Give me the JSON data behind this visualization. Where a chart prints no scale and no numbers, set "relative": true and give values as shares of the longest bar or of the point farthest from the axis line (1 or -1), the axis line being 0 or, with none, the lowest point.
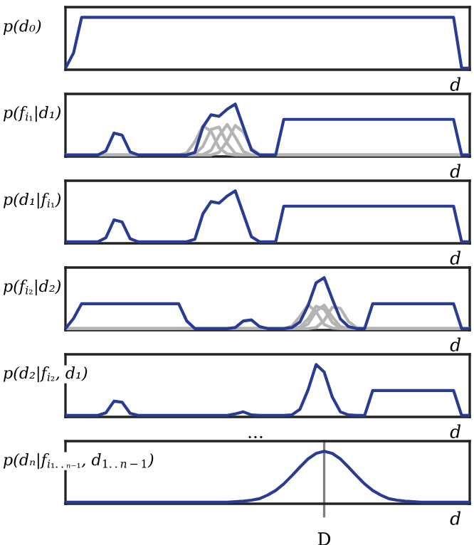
{
  "chart_data": [
    {
      "type": "line",
      "relative": true,
      "ylabel": "p(d₀)",
      "xlabel": "d",
      "categories": [
        null,
        null,
        null,
        null,
        null,
        null,
        null,
        null,
        null,
        null,
        null,
        null,
        null,
        null,
        null,
        null,
        null,
        null,
        null,
        null,
        null,
        null,
        null,
        null,
        null,
        null,
        null,
        null,
        null,
        null,
        null,
        null,
        null,
        null,
        null,
        null,
        null,
        null,
        null,
        null,
        null,
        null,
        null,
        null,
        null,
        null,
        null,
        null,
        null,
        null,
        null
      ],
      "series": [
        {
          "color": "#283c96",
          "values": [
            0,
            0.3,
            1,
            1,
            1,
            1,
            1,
            1,
            1,
            1,
            1,
            1,
            1,
            1,
            1,
            1,
            1,
            1,
            1,
            1,
            1,
            1,
            1,
            1,
            1,
            1,
            1,
            1,
            1,
            1,
            1,
            1,
            1,
            1,
            1,
            1,
            1,
            1,
            1,
            1,
            1,
            1,
            1,
            1,
            1,
            1,
            1,
            1,
            1,
            0,
            0
          ]
        }
      ]
    },
    {
      "type": "line",
      "relative": true,
      "ylabel": "p(f$_{i₁}$|d₁)",
      "xlabel": "d",
      "categories": [
        null,
        null,
        null,
        null,
        null,
        null,
        null,
        null,
        null,
        null,
        null,
        null,
        null,
        null,
        null,
        null,
        null,
        null,
        null,
        null,
        null,
        null,
        null,
        null,
        null,
        null,
        null,
        null,
        null,
        null,
        null,
        null,
        null,
        null,
        null,
        null,
        null,
        null,
        null,
        null,
        null,
        null,
        null,
        null,
        null,
        null,
        null,
        null,
        null,
        null,
        null
      ],
      "series": [
        {
          "color": "#b4b4b4",
          "values": [
            0,
            0,
            0,
            0,
            0,
            0,
            0,
            0,
            0,
            0,
            0,
            0,
            0,
            0,
            0,
            0.04,
            0.26,
            0.57,
            0.47,
            0.14,
            0.02,
            0,
            0,
            0,
            0,
            0,
            0,
            0,
            0,
            0,
            0,
            0,
            0,
            0,
            0,
            0,
            0,
            0,
            0,
            0,
            0,
            0,
            0,
            0,
            0,
            0,
            0,
            0,
            0,
            0,
            0
          ]
        },
        {
          "color": "#b4b4b4",
          "values": [
            0,
            0,
            0,
            0,
            0,
            0,
            0,
            0,
            0,
            0,
            0,
            0,
            0,
            0,
            0,
            0,
            0.02,
            0.17,
            0.5,
            0.55,
            0.23,
            0.03,
            0,
            0,
            0,
            0,
            0,
            0,
            0,
            0,
            0,
            0,
            0,
            0,
            0,
            0,
            0,
            0,
            0,
            0,
            0,
            0,
            0,
            0,
            0,
            0,
            0,
            0,
            0,
            0,
            0
          ]
        },
        {
          "color": "#b4b4b4",
          "values": [
            0,
            0,
            0,
            0,
            0,
            0,
            0,
            0,
            0,
            0,
            0,
            0,
            0,
            0,
            0,
            0,
            0,
            0.01,
            0.09,
            0.38,
            0.6,
            0.35,
            0.07,
            0,
            0,
            0,
            0,
            0,
            0,
            0,
            0,
            0,
            0,
            0,
            0,
            0,
            0,
            0,
            0,
            0,
            0,
            0,
            0,
            0,
            0,
            0,
            0,
            0,
            0,
            0,
            0
          ]
        },
        {
          "color": "#b4b4b4",
          "values": [
            0,
            0,
            0,
            0,
            0,
            0,
            0,
            0,
            0,
            0,
            0,
            0,
            0,
            0,
            0,
            0,
            0,
            0,
            0,
            0.05,
            0.27,
            0.58,
            0.45,
            0.13,
            0.01,
            0,
            0,
            0,
            0,
            0,
            0,
            0,
            0,
            0,
            0,
            0,
            0,
            0,
            0,
            0,
            0,
            0,
            0,
            0,
            0,
            0,
            0,
            0,
            0,
            0,
            0
          ]
        },
        {
          "color": "#283c96",
          "values": [
            0,
            0,
            0,
            0,
            0,
            0.08,
            0.43,
            0.39,
            0.06,
            0,
            0,
            0,
            0,
            0,
            0,
            0,
            0.05,
            0.55,
            0.79,
            0.76,
            0.9,
            1,
            0.55,
            0.1,
            0,
            0,
            0,
            0.7,
            0.7,
            0.7,
            0.7,
            0.7,
            0.7,
            0.7,
            0.7,
            0.7,
            0.7,
            0.7,
            0.7,
            0.7,
            0.7,
            0.7,
            0.7,
            0.7,
            0.7,
            0.7,
            0.7,
            0.7,
            0.7,
            0,
            0
          ]
        }
      ]
    },
    {
      "type": "line",
      "relative": true,
      "ylabel": "p(d₁|f$_{i₁}$)",
      "xlabel": "d",
      "categories": [
        null,
        null,
        null,
        null,
        null,
        null,
        null,
        null,
        null,
        null,
        null,
        null,
        null,
        null,
        null,
        null,
        null,
        null,
        null,
        null,
        null,
        null,
        null,
        null,
        null,
        null,
        null,
        null,
        null,
        null,
        null,
        null,
        null,
        null,
        null,
        null,
        null,
        null,
        null,
        null,
        null,
        null,
        null,
        null,
        null,
        null,
        null,
        null,
        null,
        null,
        null
      ],
      "series": [
        {
          "color": "#283c96",
          "values": [
            0,
            0,
            0,
            0,
            0,
            0.08,
            0.43,
            0.39,
            0.06,
            0,
            0,
            0,
            0,
            0,
            0,
            0,
            0.05,
            0.55,
            0.79,
            0.76,
            0.9,
            1,
            0.55,
            0.1,
            0,
            0,
            0,
            0.7,
            0.7,
            0.7,
            0.7,
            0.7,
            0.7,
            0.7,
            0.7,
            0.7,
            0.7,
            0.7,
            0.7,
            0.7,
            0.7,
            0.7,
            0.7,
            0.7,
            0.7,
            0.7,
            0.7,
            0.7,
            0.7,
            0,
            0
          ]
        }
      ]
    },
    {
      "type": "line",
      "relative": true,
      "ylabel": "p(f$_{i₂}$|d₂)",
      "xlabel": "d",
      "categories": [
        null,
        null,
        null,
        null,
        null,
        null,
        null,
        null,
        null,
        null,
        null,
        null,
        null,
        null,
        null,
        null,
        null,
        null,
        null,
        null,
        null,
        null,
        null,
        null,
        null,
        null,
        null,
        null,
        null,
        null,
        null,
        null,
        null,
        null,
        null,
        null,
        null,
        null,
        null,
        null,
        null,
        null,
        null,
        null,
        null,
        null,
        null,
        null,
        null,
        null,
        null
      ],
      "series": [
        {
          "color": "#b4b4b4",
          "values": [
            0,
            0,
            0,
            0,
            0,
            0,
            0,
            0,
            0,
            0,
            0,
            0,
            0,
            0,
            0,
            0,
            0,
            0,
            0,
            0,
            0,
            0,
            0,
            0,
            0,
            0,
            0,
            0,
            0.05,
            0.24,
            0.47,
            0.33,
            0.08,
            0.01,
            0,
            0,
            0,
            0,
            0,
            0,
            0,
            0,
            0,
            0,
            0,
            0,
            0,
            0,
            0,
            0,
            0
          ]
        },
        {
          "color": "#b4b4b4",
          "values": [
            0,
            0,
            0,
            0,
            0,
            0,
            0,
            0,
            0,
            0,
            0,
            0,
            0,
            0,
            0,
            0,
            0,
            0,
            0,
            0,
            0,
            0,
            0,
            0,
            0,
            0,
            0,
            0,
            0,
            0.03,
            0.19,
            0.44,
            0.38,
            0.12,
            0.01,
            0,
            0,
            0,
            0,
            0,
            0,
            0,
            0,
            0,
            0,
            0,
            0,
            0,
            0,
            0,
            0
          ]
        },
        {
          "color": "#b4b4b4",
          "values": [
            0,
            0,
            0,
            0,
            0,
            0,
            0,
            0,
            0,
            0,
            0,
            0,
            0,
            0,
            0,
            0,
            0,
            0,
            0,
            0,
            0,
            0,
            0,
            0,
            0,
            0,
            0,
            0,
            0,
            0.01,
            0.09,
            0.34,
            0.46,
            0.23,
            0.04,
            0,
            0,
            0,
            0,
            0,
            0,
            0,
            0,
            0,
            0,
            0,
            0,
            0,
            0,
            0,
            0
          ]
        },
        {
          "color": "#b4b4b4",
          "values": [
            0,
            0,
            0,
            0,
            0,
            0,
            0,
            0,
            0,
            0,
            0,
            0,
            0,
            0,
            0,
            0,
            0,
            0,
            0,
            0,
            0,
            0,
            0,
            0,
            0,
            0,
            0,
            0,
            0,
            0,
            0,
            0.02,
            0.16,
            0.42,
            0.4,
            0.14,
            0.02,
            0,
            0,
            0,
            0,
            0,
            0,
            0,
            0,
            0,
            0,
            0,
            0,
            0,
            0
          ]
        },
        {
          "color": "#283c96",
          "values": [
            0,
            0.2,
            0.49,
            0.49,
            0.49,
            0.49,
            0.49,
            0.49,
            0.49,
            0.49,
            0.49,
            0.49,
            0.49,
            0.49,
            0.49,
            0.15,
            0,
            0,
            0,
            0,
            0,
            0.02,
            0.15,
            0.17,
            0.04,
            0,
            0,
            0,
            0.02,
            0.13,
            0.45,
            0.9,
            1,
            0.58,
            0.19,
            0.04,
            0,
            0,
            0.49,
            0.49,
            0.49,
            0.49,
            0.49,
            0.49,
            0.49,
            0.49,
            0.49,
            0.49,
            0.49,
            0,
            0
          ]
        }
      ]
    },
    {
      "type": "line",
      "relative": true,
      "ylabel": "p(d₂|f$_{i₂}$, d₁)",
      "xlabel": "d",
      "annotations": [
        "..."
      ],
      "categories": [
        null,
        null,
        null,
        null,
        null,
        null,
        null,
        null,
        null,
        null,
        null,
        null,
        null,
        null,
        null,
        null,
        null,
        null,
        null,
        null,
        null,
        null,
        null,
        null,
        null,
        null,
        null,
        null,
        null,
        null,
        null,
        null,
        null,
        null,
        null,
        null,
        null,
        null,
        null,
        null,
        null,
        null,
        null,
        null,
        null,
        null,
        null,
        null,
        null,
        null,
        null
      ],
      "series": [
        {
          "color": "#283c96",
          "values": [
            0,
            0,
            0,
            0,
            0,
            0.05,
            0.28,
            0.26,
            0.04,
            0,
            0,
            0,
            0,
            0,
            0,
            0,
            0,
            0,
            0,
            0,
            0,
            0.03,
            0.07,
            0.01,
            0,
            0,
            0,
            0,
            0.01,
            0.12,
            0.5,
            1,
            0.85,
            0.36,
            0.07,
            0.01,
            0,
            0,
            0.49,
            0.49,
            0.49,
            0.49,
            0.49,
            0.49,
            0.49,
            0.49,
            0.49,
            0.49,
            0.49,
            0,
            0
          ]
        }
      ]
    },
    {
      "type": "line",
      "relative": true,
      "ylabel": "p(dₙ|f$_{i₁..ₙ₋₁}$, d$_{1..n−1}$)",
      "xlabel": "d",
      "categories": [
        null,
        null,
        null,
        null,
        null,
        null,
        null,
        null,
        null,
        null,
        null,
        null,
        null,
        null,
        null,
        null,
        null,
        null,
        null,
        null,
        null,
        null,
        null,
        null,
        null,
        null,
        null,
        null,
        null,
        null,
        null,
        null,
        null,
        null,
        null,
        null,
        null,
        null,
        null,
        null,
        null,
        null,
        null,
        null,
        null,
        null,
        null,
        null,
        null,
        null,
        null
      ],
      "ref_lines": [
        {
          "axis": "x",
          "value": "D",
          "color": "#808080"
        }
      ],
      "series": [
        {
          "color": "#283c96",
          "values": [
            0,
            0,
            0,
            0,
            0,
            0,
            0,
            0,
            0,
            0,
            0,
            0,
            0,
            0,
            0,
            0,
            0,
            0,
            0,
            0,
            0,
            0.01,
            0.02,
            0.04,
            0.07,
            0.14,
            0.23,
            0.36,
            0.52,
            0.69,
            0.85,
            0.96,
            1,
            0.96,
            0.85,
            0.69,
            0.52,
            0.36,
            0.23,
            0.14,
            0.07,
            0.04,
            0.02,
            0.01,
            0,
            0,
            0,
            0,
            0,
            0,
            0
          ]
        }
      ]
    }
  ]
}
